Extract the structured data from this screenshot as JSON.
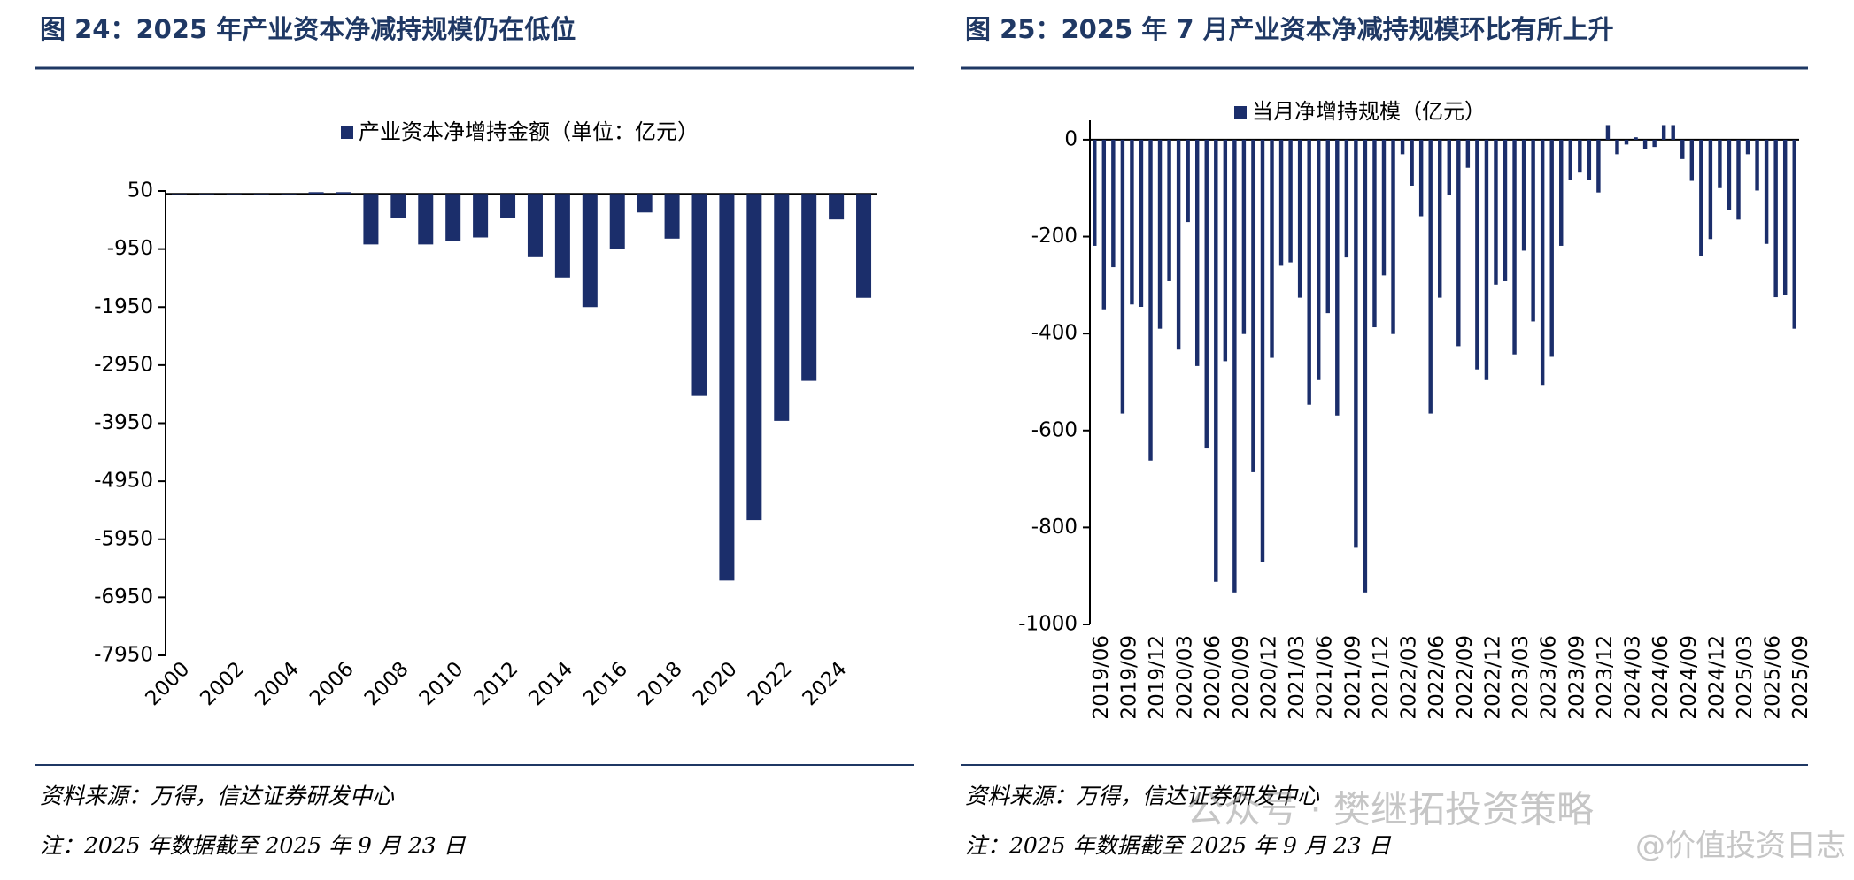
{
  "chart_data": [
    {
      "type": "bar",
      "title": "图 24：2025 年产业资本净减持规模仍在低位",
      "categories": [
        "2000",
        null,
        "2002",
        null,
        "2004",
        null,
        "2006",
        null,
        "2008",
        null,
        "2010",
        null,
        "2012",
        null,
        "2014",
        null,
        "2016",
        null,
        "2018",
        null,
        "2020",
        null,
        "2022",
        null,
        "2024",
        null
      ],
      "series": [
        {
          "name": "产业资本净增持金额（单位：亿元）",
          "color": "#1b2e6b",
          "values": [
            0,
            0,
            0,
            0,
            0,
            30,
            30,
            -870,
            -420,
            -870,
            -810,
            -750,
            -420,
            -1090,
            -1440,
            -1950,
            -950,
            -320,
            -770,
            -3480,
            -6660,
            -5620,
            -3910,
            -3220,
            -440,
            -1790
          ]
        }
      ],
      "ylim": [
        -7950,
        50
      ],
      "yticks": [
        50,
        -950,
        -1950,
        -2950,
        -3950,
        -4950,
        -5950,
        -6950,
        -7950
      ],
      "source": "资料来源：万得，信达证券研发中心",
      "note": "注：2025 年数据截至 2025 年 9 月 23 日"
    },
    {
      "type": "bar",
      "title": "图 25：2025 年 7 月产业资本净减持规模环比有所上升",
      "categories": [
        "2019/06",
        null,
        null,
        "2019/09",
        null,
        null,
        "2019/12",
        null,
        null,
        "2020/03",
        null,
        null,
        "2020/06",
        null,
        null,
        "2020/09",
        null,
        null,
        "2020/12",
        null,
        null,
        "2021/03",
        null,
        null,
        "2021/06",
        null,
        null,
        "2021/09",
        null,
        null,
        "2021/12",
        null,
        null,
        "2022/03",
        null,
        null,
        "2022/06",
        null,
        null,
        "2022/09",
        null,
        null,
        "2022/12",
        null,
        null,
        "2023/03",
        null,
        null,
        "2023/06",
        null,
        null,
        "2023/09",
        null,
        null,
        "2023/12",
        null,
        null,
        "2024/03",
        null,
        null,
        "2024/06",
        null,
        null,
        "2024/09",
        null,
        null,
        "2024/12",
        null,
        null,
        "2025/03",
        null,
        null,
        "2025/06",
        null,
        null,
        "2025/09"
      ],
      "series": [
        {
          "name": "当月净增持规模（亿元）",
          "color": "#1b2e6b",
          "values": [
            -219,
            -350,
            -263,
            -565,
            -340,
            -345,
            -662,
            -390,
            -292,
            -433,
            -170,
            -467,
            -637,
            -912,
            -457,
            -934,
            -401,
            -686,
            -871,
            -450,
            -260,
            -253,
            -326,
            -547,
            -496,
            -358,
            -569,
            -243,
            -842,
            -934,
            -387,
            -280,
            -401,
            -30,
            -95,
            -158,
            -565,
            -326,
            -114,
            -426,
            -58,
            -474,
            -496,
            -299,
            -292,
            -443,
            -229,
            -375,
            -506,
            -448,
            -219,
            -83,
            -68,
            -83,
            -109,
            30,
            -30,
            -10,
            5,
            -20,
            -15,
            30,
            30,
            -40,
            -85,
            -240,
            -205,
            -100,
            -145,
            -165,
            -30,
            -105,
            -215,
            -325,
            -320,
            -390
          ]
        }
      ],
      "ylim": [
        -1000,
        40
      ],
      "yticks": [
        0,
        -200,
        -400,
        -600,
        -800,
        -1000
      ],
      "source": "资料来源：万得，信达证券研发中心",
      "note": "注：2025 年数据截至 2025 年 9 月 23 日",
      "watermark": [
        "公众号 · 樊继拓投资策略",
        "@价值投资日志"
      ]
    }
  ]
}
